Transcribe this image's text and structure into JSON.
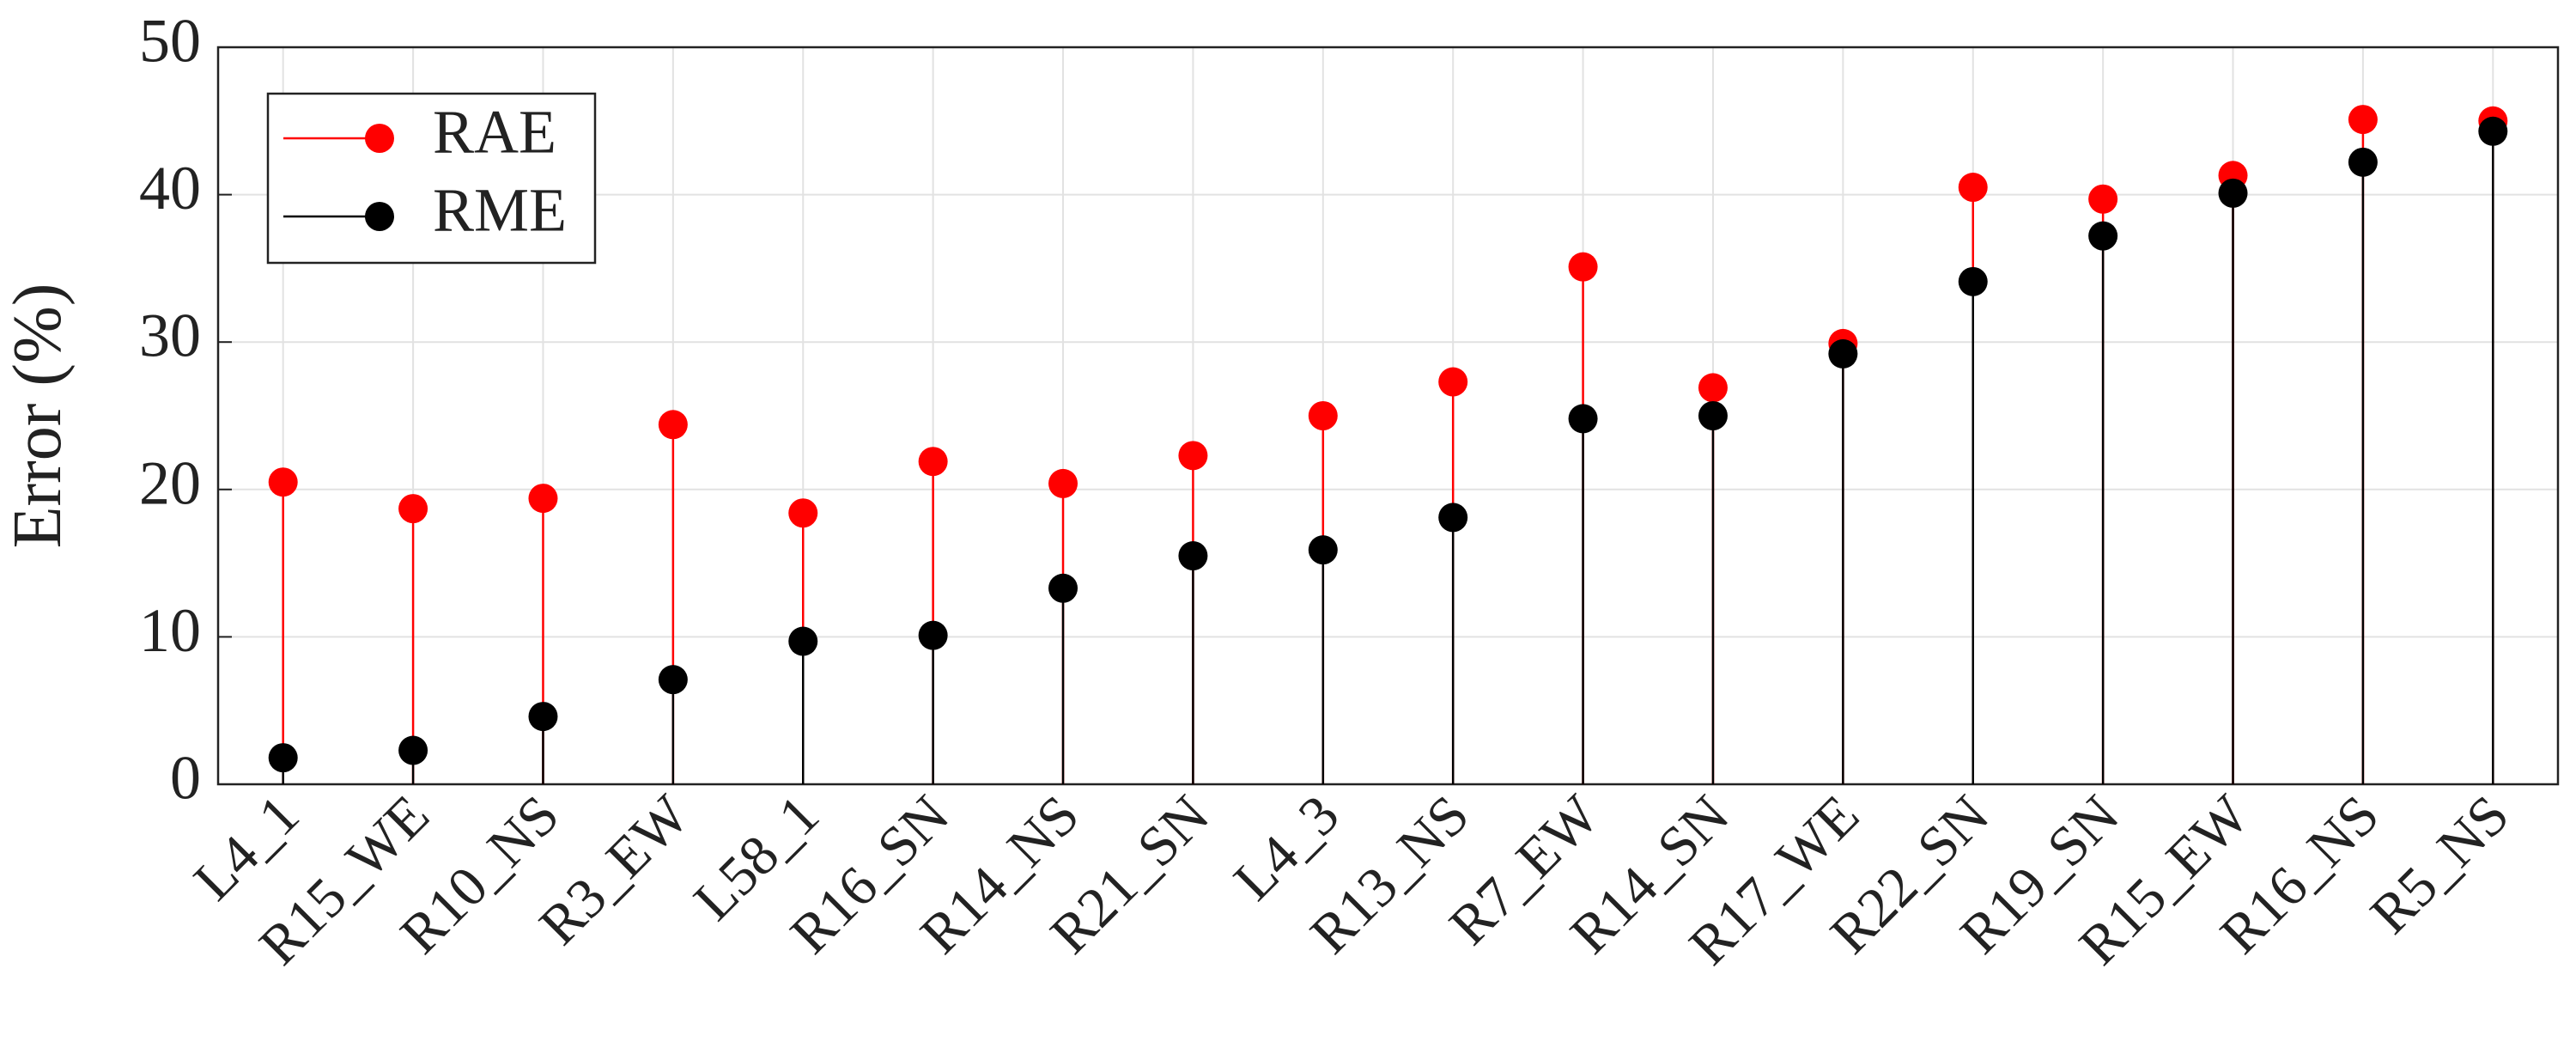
{
  "chart_data": {
    "type": "stem",
    "y_label": "Error (%)",
    "categories": [
      "L4_1",
      "R15_WE",
      "R10_NS",
      "R3_EW",
      "L58_1",
      "R16_SN",
      "R14_NS",
      "R21_SN",
      "L4_3",
      "R13_NS",
      "R7_EW",
      "R14_SN",
      "R17_WE",
      "R22_SN",
      "R19_SN",
      "R15_EW",
      "R16_NS",
      "R5_NS"
    ],
    "series": [
      {
        "name": "RAE",
        "color": "#ff0000",
        "values": [
          20.5,
          18.7,
          19.4,
          24.4,
          18.4,
          21.9,
          20.4,
          22.3,
          25.0,
          27.3,
          35.1,
          26.9,
          29.9,
          40.5,
          39.7,
          41.3,
          45.1,
          45.0
        ]
      },
      {
        "name": "RME",
        "color": "#000000",
        "values": [
          1.8,
          2.3,
          4.6,
          7.1,
          9.7,
          10.1,
          13.3,
          15.5,
          15.9,
          18.1,
          24.8,
          25.0,
          29.2,
          34.1,
          37.2,
          40.1,
          42.2,
          44.3
        ]
      }
    ],
    "ylim": [
      0,
      50
    ],
    "yticks": [
      0,
      10,
      20,
      30,
      40,
      50
    ],
    "grid": true,
    "legend": "upper left"
  }
}
